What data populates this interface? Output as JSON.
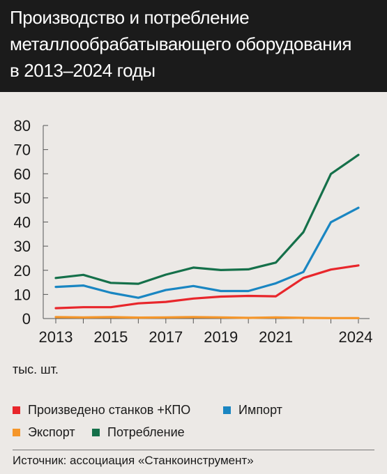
{
  "title_lines": [
    "Производство и потребление",
    "металлообрабатывающего оборудования",
    "в 2013–2024 годы"
  ],
  "unit_label": "тыс. шт.",
  "source": "Источник: ассоциация «Станкоинструмент»",
  "colors": {
    "header_bg": "#1b1b1b",
    "background": "#ece9e6",
    "production": "#e8262b",
    "import": "#1a86c2",
    "export": "#f5962a",
    "consumption": "#15704a"
  },
  "chart_data": {
    "type": "line",
    "title": "",
    "xlabel": "",
    "ylabel": "тыс. шт.",
    "ylim": [
      0,
      80
    ],
    "yticks": [
      0,
      10,
      20,
      30,
      40,
      50,
      60,
      70,
      80
    ],
    "x": [
      2013,
      2014,
      2015,
      2016,
      2017,
      2018,
      2019,
      2020,
      2021,
      2022,
      2023,
      2024
    ],
    "xtick_labels": [
      "2013",
      "2015",
      "2017",
      "2019",
      "2021",
      "2024"
    ],
    "xtick_values": [
      2013,
      2015,
      2017,
      2019,
      2021,
      2024
    ],
    "grid": false,
    "legend_position": "bottom",
    "series": [
      {
        "key": "production",
        "name": "Произведено станков +КПО",
        "color": "#e8262b",
        "values": [
          4.3,
          4.7,
          4.7,
          6.3,
          6.9,
          8.3,
          9.1,
          9.4,
          9.2,
          16.8,
          20.3,
          22.0
        ]
      },
      {
        "key": "import",
        "name": "Импорт",
        "color": "#1a86c2",
        "values": [
          13.1,
          13.7,
          10.7,
          8.6,
          11.8,
          13.5,
          11.4,
          11.4,
          14.6,
          19.3,
          39.9,
          45.9
        ]
      },
      {
        "key": "export",
        "name": "Экспорт",
        "color": "#f5962a",
        "values": [
          0.6,
          0.5,
          0.6,
          0.4,
          0.5,
          0.6,
          0.5,
          0.3,
          0.5,
          0.3,
          0.2,
          0.2
        ]
      },
      {
        "key": "consumption",
        "name": "Потребление",
        "color": "#15704a",
        "values": [
          16.8,
          18.1,
          14.8,
          14.4,
          18.2,
          21.1,
          20.1,
          20.4,
          23.2,
          35.8,
          59.9,
          67.8
        ]
      }
    ]
  }
}
